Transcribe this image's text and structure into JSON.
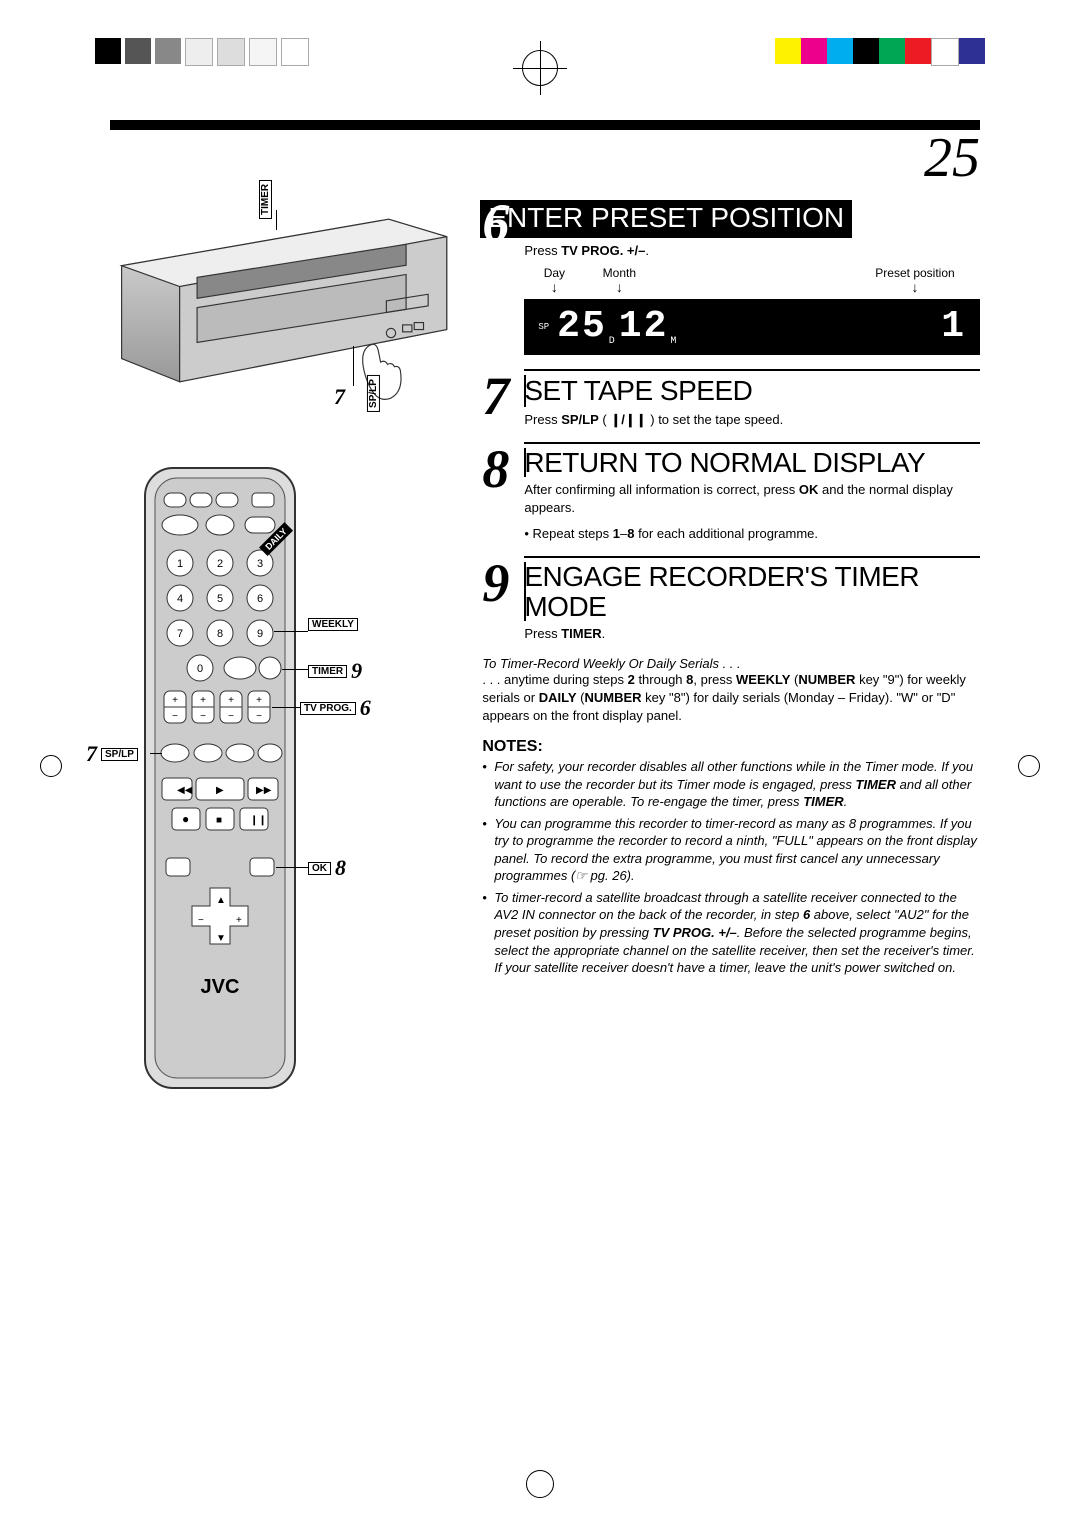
{
  "page_number": "25",
  "callouts": {
    "vcr_timer": "TIMER",
    "vcr_splp_num": "7",
    "vcr_splp": "SP/LP",
    "remote_weekly": "WEEKLY",
    "remote_timer_num": "9",
    "remote_timer": "TIMER",
    "remote_tvprog_num": "6",
    "remote_tvprog": "TV PROG.",
    "remote_splp_num": "7",
    "remote_splp": "SP/LP",
    "remote_ok_num": "8",
    "remote_ok": "OK",
    "remote_daily": "DAILY",
    "remote_brand": "JVC"
  },
  "steps": [
    {
      "num": "6",
      "title": "ENTER PRESET POSITION",
      "title_inverse": true,
      "text_before": "Press ",
      "text_bold": "TV PROG. +/–",
      "text_after": ".",
      "display": {
        "labels": [
          "Day",
          "Month",
          "Preset position"
        ],
        "sp_indicator": "SP",
        "day": "25",
        "day_sub": "D",
        "month": "12",
        "month_sub": "M",
        "preset": "1"
      }
    },
    {
      "num": "7",
      "title": "SET TAPE SPEED",
      "text": "Press <b>SP/LP</b> ( <b>❙/❙❙</b> ) to set the tape speed."
    },
    {
      "num": "8",
      "title": "RETURN TO NORMAL DISPLAY",
      "text": "After confirming all information is correct, press <b>OK</b> and the normal display appears.",
      "bullet": "Repeat steps <b>1</b>–<b>8</b> for each additional programme."
    },
    {
      "num": "9",
      "title": "ENGAGE RECORDER'S TIMER MODE",
      "text": "Press <b>TIMER</b>."
    }
  ],
  "serial": {
    "heading": "To Timer-Record Weekly Or Daily Serials . . .",
    "body": ". . . anytime during steps <b>2</b> through <b>8</b>, press <b>WEEKLY</b> (<b>NUMBER</b> key \"9\") for weekly serials or <b>DAILY</b> (<b>NUMBER</b> key \"8\") for daily serials (Monday – Friday). \"W\" or \"D\" appears on the front display panel."
  },
  "notes_heading": "NOTES:",
  "notes": [
    "For safety, your recorder disables all other functions while in the Timer mode. If you want to use the recorder but its Timer mode is engaged, press <b>TIMER</b> and all other functions are operable. To re-engage the timer, press <b>TIMER</b>.",
    "You can programme this recorder to timer-record as many as 8 programmes. If you try to programme the recorder to record a ninth, \"FULL\" appears on the front display panel. To record the extra programme, you must first cancel any unnecessary programmes (☞ pg. 26).",
    "To timer-record a satellite broadcast through a satellite receiver connected to the AV2 IN connector on the back of the recorder, in step <b>6</b> above, select \"AU2\" for the preset position by pressing <b>TV PROG. +/–</b>. Before the selected programme begins, select the appropriate channel on the satellite receiver, then set the receiver's timer. If your satellite receiver doesn't have a timer, leave the unit's power switched on."
  ],
  "colors": {
    "reg": [
      "#00aeef",
      "#ec008c",
      "#fff200",
      "#000000",
      "#00a651",
      "#ed1c24",
      "#ffffff",
      "#2e3192"
    ]
  }
}
